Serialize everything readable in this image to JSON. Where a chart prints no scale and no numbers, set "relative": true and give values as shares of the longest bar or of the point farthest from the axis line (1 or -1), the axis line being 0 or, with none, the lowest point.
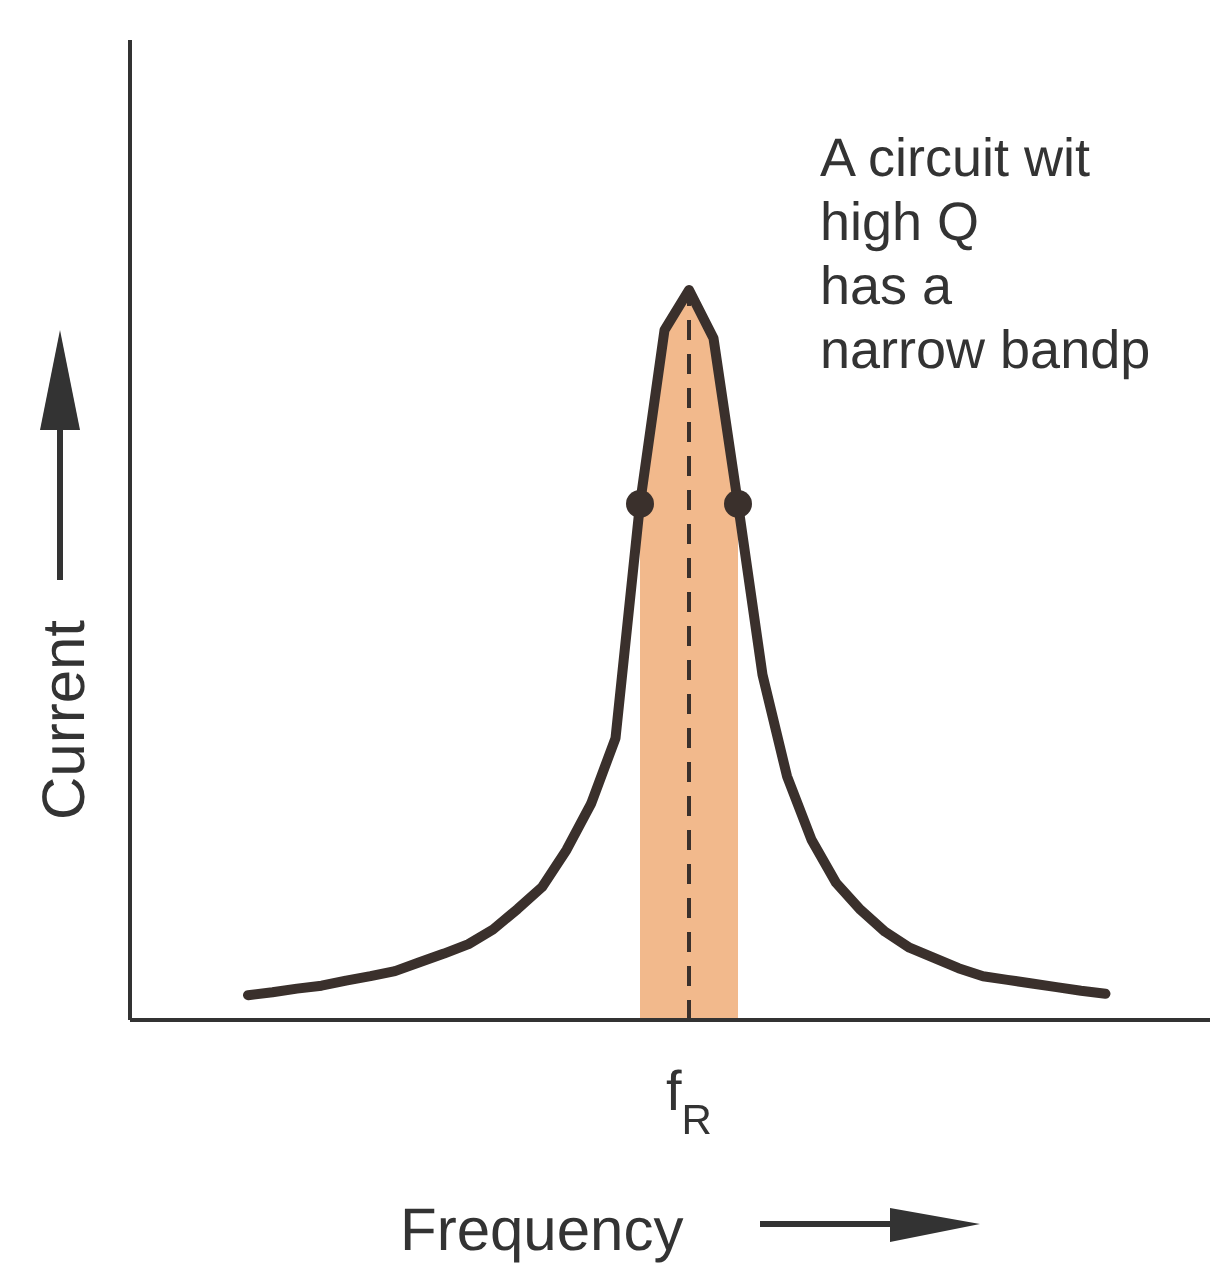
{
  "chart_data": {
    "type": "line",
    "relative": true,
    "xlabel": "Frequency",
    "ylabel": "Current",
    "categories": [
      null,
      null,
      null,
      null,
      null,
      null,
      null,
      null,
      null,
      null,
      null,
      null,
      null,
      null,
      null,
      null,
      null,
      null,
      null,
      null,
      null,
      null,
      null,
      null,
      null,
      null,
      null,
      null,
      null,
      null,
      null,
      null,
      null,
      null,
      null,
      null
    ],
    "annotations": [
      "A circuit wit\nhigh Q\nhas a\nnarrow bandp",
      "f$_{R}$"
    ],
    "series": [
      {
        "color": "#3a302c",
        "values": [
          0.034,
          0.038,
          0.043,
          0.047,
          0.054,
          0.06,
          0.067,
          0.079,
          0.091,
          0.104,
          0.124,
          0.152,
          0.182,
          0.233,
          0.296,
          0.386,
          0.707,
          0.945,
          1,
          0.934,
          0.707,
          0.473,
          0.334,
          0.247,
          0.188,
          0.151,
          0.121,
          0.099,
          0.085,
          0.071,
          0.06,
          0.055,
          0.05,
          0.045,
          0.04,
          0.036
        ]
      }
    ]
  }
}
